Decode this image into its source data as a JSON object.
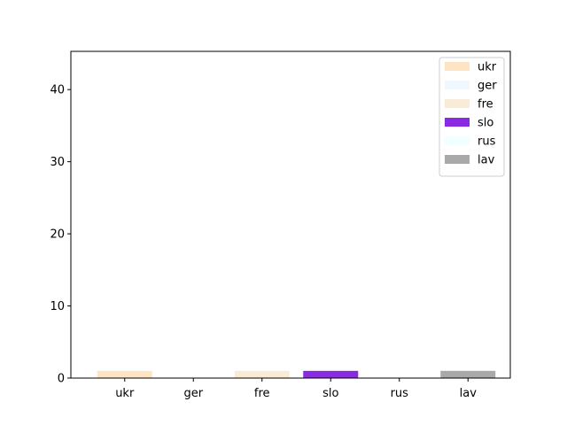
{
  "chart_data": {
    "type": "bar",
    "categories": [
      "ukr",
      "ger",
      "fre",
      "slo",
      "rus",
      "lav"
    ],
    "values": [
      1,
      0,
      1,
      1,
      0,
      1
    ],
    "colors": [
      "#ffe4c4",
      "#f0f8ff",
      "#faebd7",
      "#8a2be2",
      "#f0ffff",
      "#a9a9a9"
    ],
    "ylim": [
      0,
      45.3
    ],
    "yticks": [
      0,
      10,
      20,
      30,
      40
    ],
    "legend": {
      "placement": "top-right",
      "entries": [
        "ukr",
        "ger",
        "fre",
        "slo",
        "rus",
        "lav"
      ]
    },
    "grid": false,
    "title": "",
    "xlabel": "",
    "ylabel": ""
  }
}
